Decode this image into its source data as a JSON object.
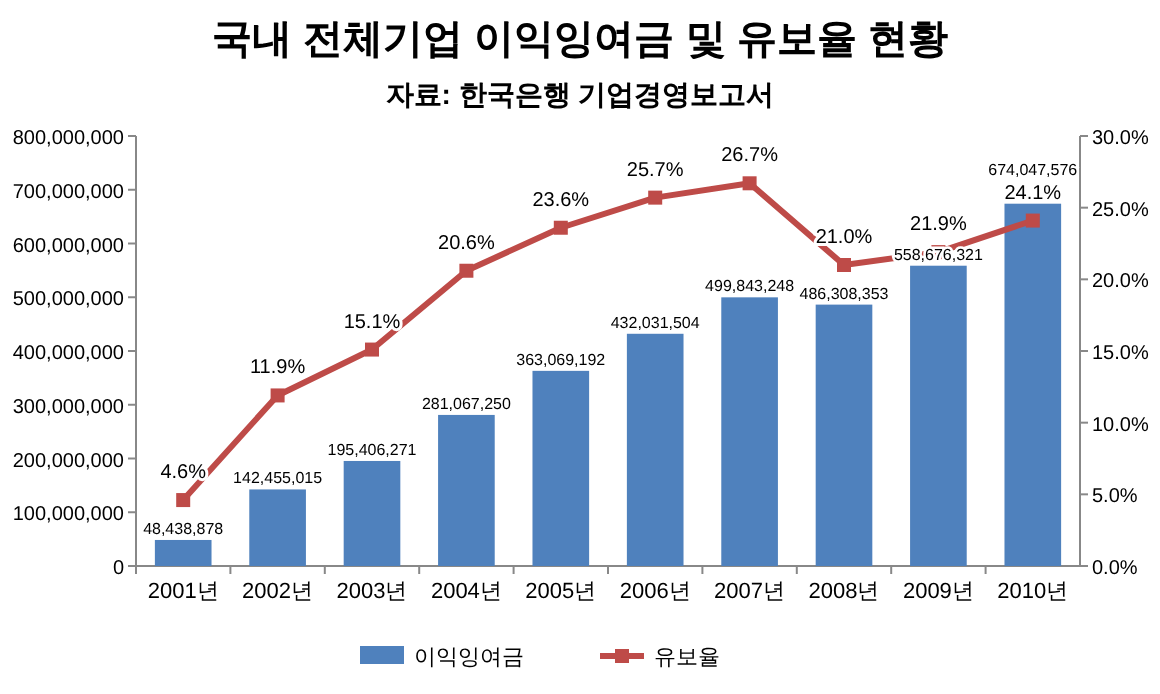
{
  "chart_data": {
    "type": "bar",
    "title": "국내 전체기업 이익잉여금 및 유보율 현황",
    "subtitle": "자료: 한국은행 기업경영보고서",
    "categories": [
      "2001년",
      "2002년",
      "2003년",
      "2004년",
      "2005년",
      "2006년",
      "2007년",
      "2008년",
      "2009년",
      "2010년"
    ],
    "series": [
      {
        "name": "이익잉여금",
        "color": "#4f81bd",
        "values": [
          48438878,
          142455015,
          195406271,
          281067250,
          363069192,
          432031504,
          499843248,
          486308353,
          558676321,
          674047576
        ],
        "value_labels": [
          "48,438,878",
          "142,455,015",
          "195,406,271",
          "281,067,250",
          "363,069,192",
          "432,031,504",
          "499,843,248",
          "486,308,353",
          "558,676,321",
          "674,047,576"
        ]
      },
      {
        "name": "유보율",
        "type": "line",
        "axis": "y2",
        "color": "#be4b48",
        "marker": "square",
        "values": [
          4.6,
          11.9,
          15.1,
          20.6,
          23.6,
          25.7,
          26.7,
          21.0,
          21.9,
          24.1
        ],
        "value_labels": [
          "4.6%",
          "11.9%",
          "15.1%",
          "20.6%",
          "23.6%",
          "25.7%",
          "26.7%",
          "21.0%",
          "21.9%",
          "24.1%"
        ]
      }
    ],
    "ylim": [
      0,
      800000000
    ],
    "yticks": [
      0,
      {
        "value": 100000000,
        "label": "100,000,000"
      },
      {
        "value": 200000000,
        "label": "200,000,000"
      },
      {
        "value": 300000000,
        "label": "300,000,000"
      },
      {
        "value": 400000000,
        "label": "400,000,000"
      },
      {
        "value": 500000000,
        "label": "500,000,000"
      },
      {
        "value": 600000000,
        "label": "600,000,000"
      },
      {
        "value": 700000000,
        "label": "700,000,000"
      },
      {
        "value": 800000000,
        "label": "800,000,000"
      }
    ],
    "y2lim": [
      0,
      30
    ],
    "y2ticks": [
      {
        "value": 0,
        "label": "0.0%"
      },
      {
        "value": 5,
        "label": "5.0%"
      },
      {
        "value": 10,
        "label": "10.0%"
      },
      {
        "value": 15,
        "label": "15.0%"
      },
      {
        "value": 20,
        "label": "20.0%"
      },
      {
        "value": 25,
        "label": "25.0%"
      },
      {
        "value": 30,
        "label": "30.0%"
      }
    ],
    "grid": false,
    "legend": "bottom"
  }
}
